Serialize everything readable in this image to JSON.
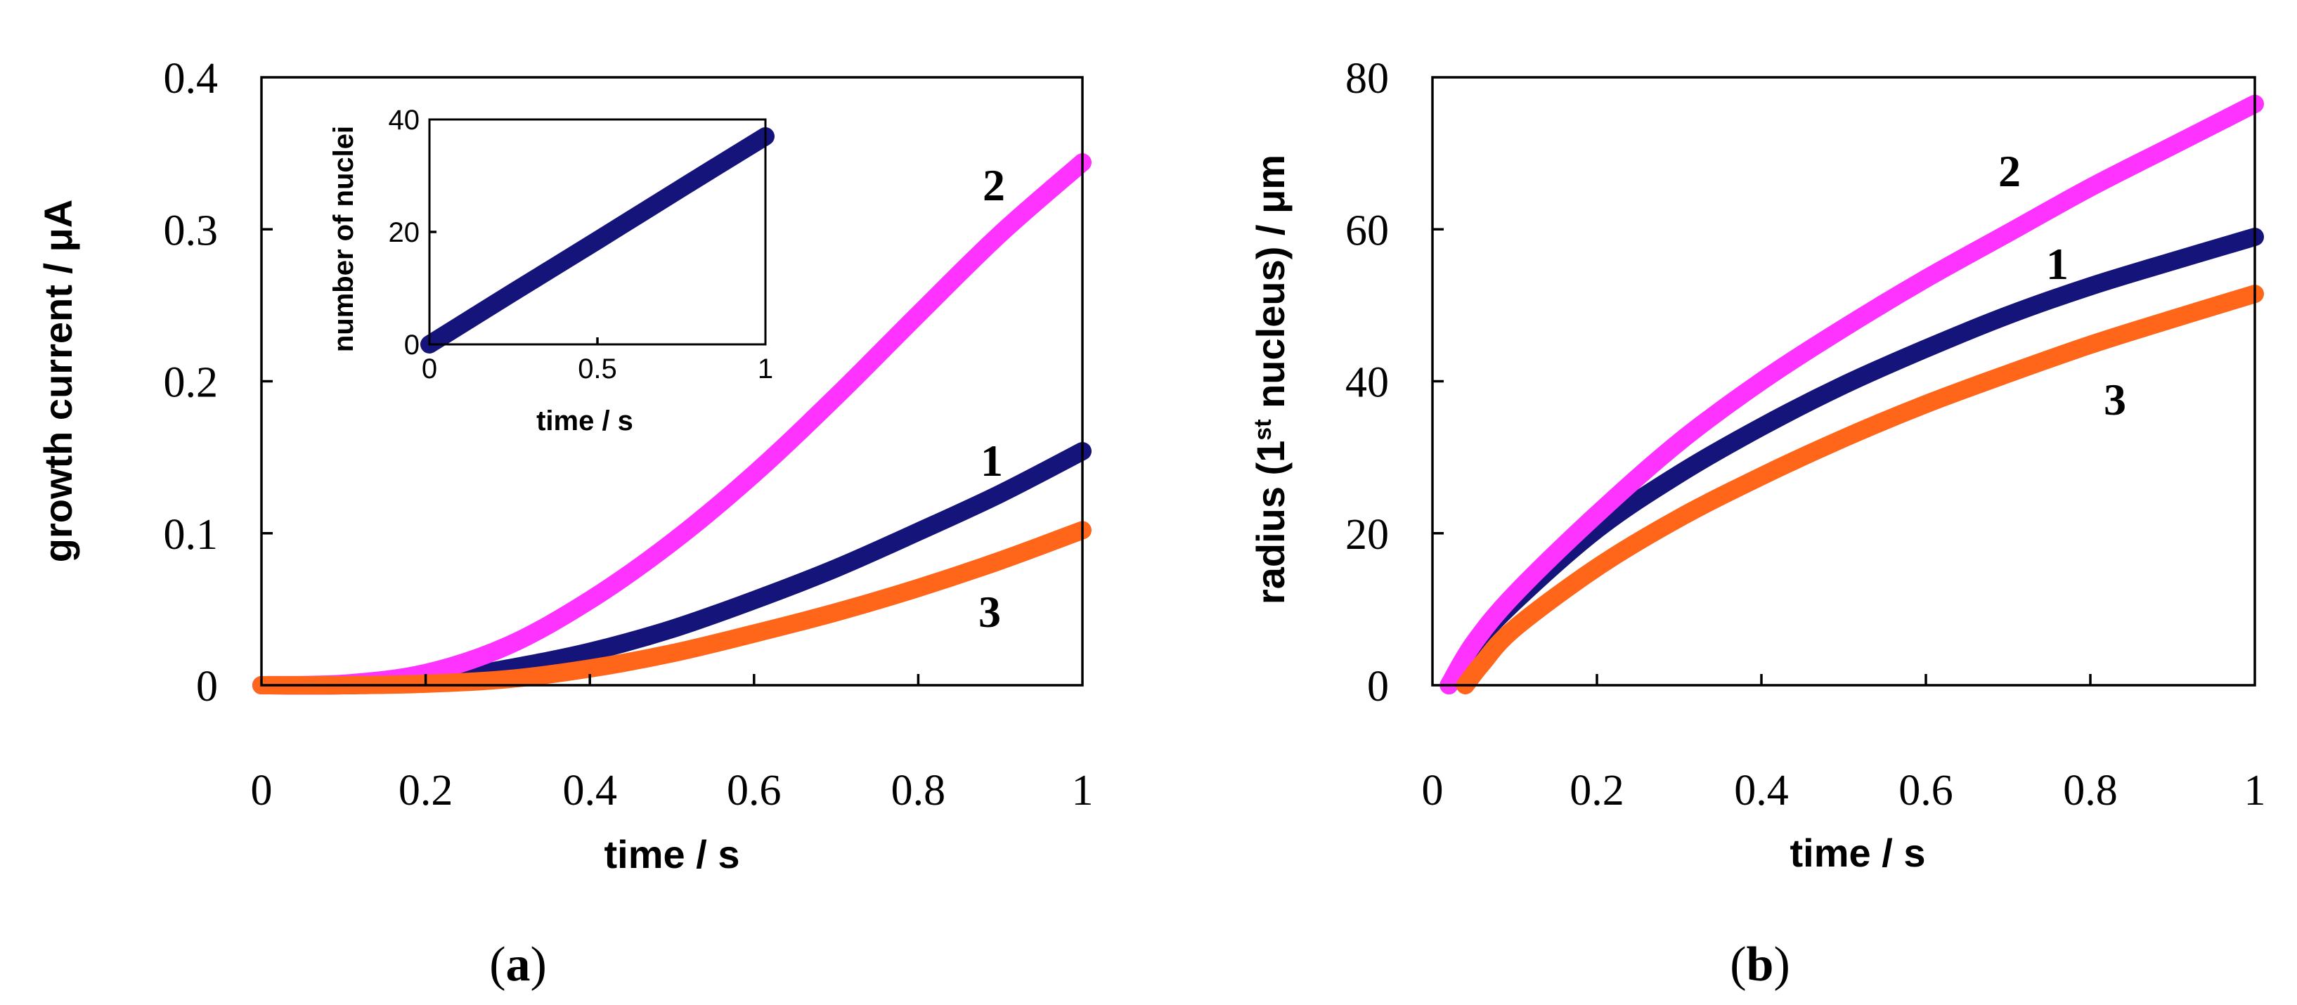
{
  "chart_data": [
    {
      "id": "a",
      "type": "line",
      "panel_label": "(a)",
      "xlabel": "time / s",
      "ylabel": "growth current  / μA",
      "xlim": [
        0,
        1
      ],
      "ylim": [
        0,
        0.4
      ],
      "xticks": [
        "0",
        "0.2",
        "0.4",
        "0.6",
        "0.8",
        "1"
      ],
      "yticks": [
        "0",
        "0.1",
        "0.2",
        "0.3",
        "0.4"
      ],
      "series": [
        {
          "name": "1",
          "color": "#14147a",
          "x": [
            0,
            0.1,
            0.2,
            0.3,
            0.4,
            0.5,
            0.6,
            0.7,
            0.8,
            0.9,
            1.0
          ],
          "y": [
            0,
            0,
            0.002,
            0.011,
            0.022,
            0.037,
            0.056,
            0.077,
            0.101,
            0.126,
            0.154
          ]
        },
        {
          "name": "2",
          "color": "#ff33ff",
          "x": [
            0,
            0.1,
            0.2,
            0.3,
            0.4,
            0.5,
            0.6,
            0.7,
            0.8,
            0.9,
            1.0
          ],
          "y": [
            0,
            0.001,
            0.008,
            0.026,
            0.056,
            0.094,
            0.139,
            0.19,
            0.244,
            0.297,
            0.344
          ]
        },
        {
          "name": "3",
          "color": "#ff6619",
          "x": [
            0,
            0.1,
            0.2,
            0.3,
            0.4,
            0.5,
            0.6,
            0.7,
            0.8,
            0.9,
            1.0
          ],
          "y": [
            0,
            0,
            0.001,
            0.004,
            0.011,
            0.021,
            0.034,
            0.048,
            0.064,
            0.082,
            0.102
          ]
        }
      ],
      "inset": {
        "type": "line",
        "xlabel": "time / s",
        "ylabel": "number of nuclei",
        "xlim": [
          0,
          1
        ],
        "ylim": [
          0,
          40
        ],
        "xticks": [
          "0",
          "0.5",
          "1"
        ],
        "yticks": [
          "0",
          "20",
          "40"
        ],
        "series": [
          {
            "name": "nuclei",
            "color": "#14147a",
            "x": [
              0,
              0.25,
              0.5,
              0.75,
              1.0
            ],
            "y": [
              0,
              9.3,
              18.5,
              27.8,
              37
            ]
          }
        ]
      }
    },
    {
      "id": "b",
      "type": "line",
      "panel_label": "(b)",
      "xlabel": "time / s",
      "ylabel_parts": [
        "radius (1",
        "st",
        " nucleus) / μm"
      ],
      "xlim": [
        0,
        1
      ],
      "ylim": [
        0,
        80
      ],
      "xticks": [
        "0",
        "0.2",
        "0.4",
        "0.6",
        "0.8",
        "1"
      ],
      "yticks": [
        "0",
        "20",
        "40",
        "60",
        "80"
      ],
      "series": [
        {
          "name": "1",
          "color": "#14147a",
          "x": [
            0.02,
            0.05,
            0.1,
            0.2,
            0.3,
            0.4,
            0.5,
            0.6,
            0.7,
            0.8,
            0.9,
            1.0
          ],
          "y": [
            0,
            5.2,
            11,
            20.5,
            27.8,
            34,
            39.5,
            44.3,
            48.7,
            52.5,
            55.8,
            59
          ]
        },
        {
          "name": "2",
          "color": "#ff33ff",
          "x": [
            0.02,
            0.05,
            0.1,
            0.2,
            0.3,
            0.4,
            0.5,
            0.6,
            0.7,
            0.8,
            0.9,
            1.0
          ],
          "y": [
            0,
            5.5,
            12,
            22.5,
            32,
            40,
            47,
            53.5,
            59.5,
            65.5,
            71,
            76.5
          ]
        },
        {
          "name": "3",
          "color": "#ff6619",
          "x": [
            0.04,
            0.06,
            0.1,
            0.2,
            0.3,
            0.4,
            0.5,
            0.6,
            0.7,
            0.8,
            0.9,
            1.0
          ],
          "y": [
            0,
            2.8,
            7.5,
            15.5,
            22,
            27.5,
            32.5,
            37,
            41,
            44.8,
            48.2,
            51.5
          ]
        }
      ]
    }
  ]
}
